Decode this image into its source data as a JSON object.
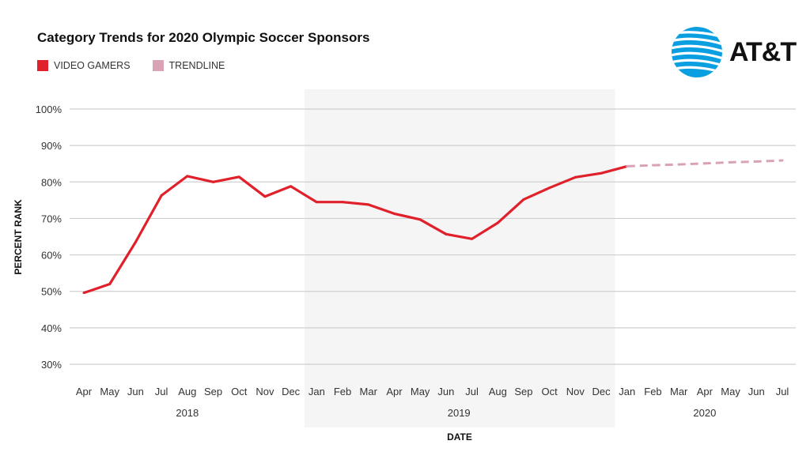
{
  "chart_data": {
    "type": "line",
    "title": "Category Trends for 2020 Olympic Soccer Sponsors",
    "xlabel": "DATE",
    "ylabel": "PERCENT RANK",
    "ylim": [
      30,
      100
    ],
    "yticks": [
      "30%",
      "40%",
      "50%",
      "60%",
      "70%",
      "80%",
      "90%",
      "100%"
    ],
    "ytick_values": [
      30,
      40,
      50,
      60,
      70,
      80,
      90,
      100
    ],
    "grid": true,
    "legend_placement": "top-left",
    "months": [
      "Apr",
      "May",
      "Jun",
      "Jul",
      "Aug",
      "Sep",
      "Oct",
      "Nov",
      "Dec",
      "Jan",
      "Feb",
      "Mar",
      "Apr",
      "May",
      "Jun",
      "Jul",
      "Aug",
      "Sep",
      "Oct",
      "Nov",
      "Dec",
      "Jan",
      "Feb",
      "Mar",
      "Apr",
      "May",
      "Jun",
      "Jul"
    ],
    "years": [
      {
        "label": "2018",
        "start": 0,
        "end": 8
      },
      {
        "label": "2019",
        "start": 9,
        "end": 20
      },
      {
        "label": "2020",
        "start": 21,
        "end": 27
      }
    ],
    "highlight_year_index": 1,
    "series": [
      {
        "name": "VIDEO GAMERS",
        "color": "#e0202a",
        "style": "solid",
        "start_index": 0,
        "values": [
          49.6,
          52.0,
          63.5,
          76.3,
          81.6,
          80.0,
          81.4,
          76.0,
          78.8,
          74.5,
          74.5,
          73.8,
          71.3,
          69.7,
          65.7,
          64.4,
          68.8,
          75.2,
          78.4,
          81.3,
          82.4,
          84.3
        ]
      },
      {
        "name": "TRENDLINE",
        "color": "#d9a3b5",
        "style": "dashed",
        "start_index": 21,
        "values": [
          84.3,
          84.6,
          84.8,
          85.1,
          85.4,
          85.6,
          85.9
        ]
      }
    ]
  },
  "logo": {
    "text": "AT&T",
    "color": "#0a9fe0"
  }
}
